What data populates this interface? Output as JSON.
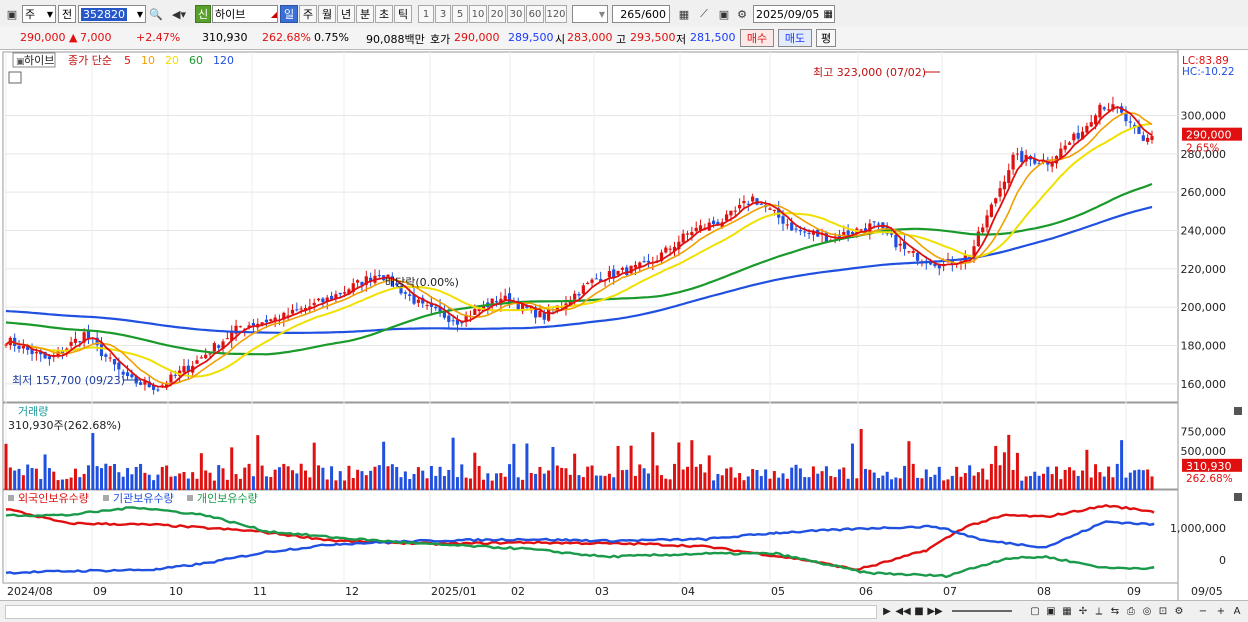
{
  "toolbar": {
    "market": "주",
    "scope": "전",
    "code": "352820",
    "badge": "신",
    "name": "하이브",
    "periods": [
      "일",
      "주",
      "월",
      "년",
      "분",
      "초",
      "틱"
    ],
    "active_period": "일",
    "intervals": [
      "1",
      "3",
      "5",
      "10",
      "20",
      "30",
      "60",
      "120"
    ],
    "count": "265",
    "count_total": "/600",
    "date": "2025/09/05"
  },
  "quote": {
    "price": "290,000",
    "change_sign": "▲",
    "change": "7,000",
    "change_pct": "+2.47%",
    "volume": "310,930",
    "volume_ratio": "262.68%",
    "turnover": "0.75%",
    "amount": "90,088백만",
    "bid_label": "호가",
    "bid": "290,000",
    "ask": "289,500",
    "open_label": "시",
    "open": "283,000",
    "high_label": "고",
    "high": "293,500",
    "low_label": "저",
    "low": "281,500",
    "buy_button": "매수",
    "sell_button": "매도",
    "avg_button": "평"
  },
  "price_pane": {
    "stock_tag": "하이브",
    "legend_prefix": "종가 단순",
    "ma_periods": [
      "5",
      "10",
      "20",
      "60",
      "120"
    ],
    "ma_colors": [
      "#e01010",
      "#f0a000",
      "#f0e000",
      "#1a9a2a",
      "#2050e0"
    ],
    "lc": "LC:83.89",
    "hc": "HC:-10.22",
    "yaxis": [
      "300,000",
      "280,000",
      "260,000",
      "240,000",
      "220,000",
      "200,000",
      "180,000",
      "160,000"
    ],
    "price_tag": "290,000",
    "price_tag_pct": "2.65%",
    "high_annotation": "최고 323,000 (07/02)",
    "low_annotation": "최저 157,700 (09/23)",
    "dividend_annotation": "배당락(0.00%)"
  },
  "volume_pane": {
    "title": "거래량",
    "value": "310,930주(262.68%)",
    "yaxis": [
      "750,000",
      "500,000"
    ],
    "tag": "310,930",
    "tag_pct": "262.68%"
  },
  "holdings_pane": {
    "legend": [
      {
        "label": "외국인보유수량",
        "color": "#e01010"
      },
      {
        "label": "기관보유수량",
        "color": "#2050e0"
      },
      {
        "label": "개인보유수량",
        "color": "#1a9a4a"
      }
    ],
    "yaxis": [
      "1,000,000",
      "0"
    ]
  },
  "xaxis": [
    "2024/08",
    "09",
    "10",
    "11",
    "12",
    "2025/01",
    "02",
    "03",
    "04",
    "05",
    "06",
    "07",
    "08",
    "09",
    "09/05"
  ]
}
